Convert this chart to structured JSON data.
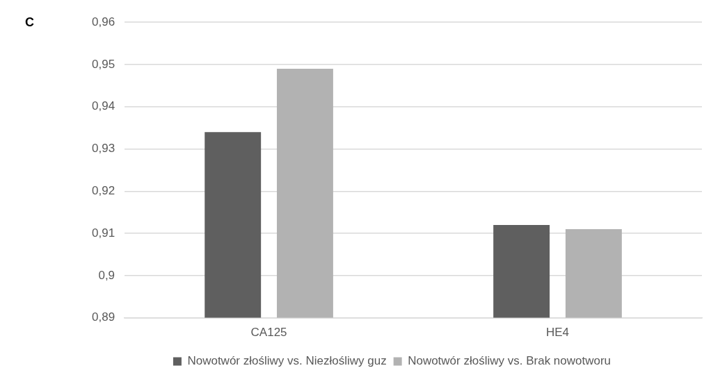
{
  "chart_data": {
    "type": "bar",
    "annotations": [
      "C"
    ],
    "categories": [
      "CA125",
      "HE4"
    ],
    "series": [
      {
        "name": "Nowotwór złośliwy vs. Niezłośliwy guz",
        "color": "#5f5f5f",
        "values": [
          0.934,
          0.912
        ]
      },
      {
        "name": "Nowotwór złośliwy vs. Brak nowotworu",
        "color": "#b2b2b2",
        "values": [
          0.949,
          0.911
        ]
      }
    ],
    "ylim": [
      0.89,
      0.96
    ],
    "yticks": [
      {
        "value": 0.89,
        "label": "0,89"
      },
      {
        "value": 0.9,
        "label": "0,9"
      },
      {
        "value": 0.91,
        "label": "0,91"
      },
      {
        "value": 0.92,
        "label": "0,92"
      },
      {
        "value": 0.93,
        "label": "0,93"
      },
      {
        "value": 0.94,
        "label": "0,94"
      },
      {
        "value": 0.95,
        "label": "0,95"
      },
      {
        "value": 0.96,
        "label": "0,96"
      }
    ],
    "grid": "y",
    "legend": "bottom"
  }
}
